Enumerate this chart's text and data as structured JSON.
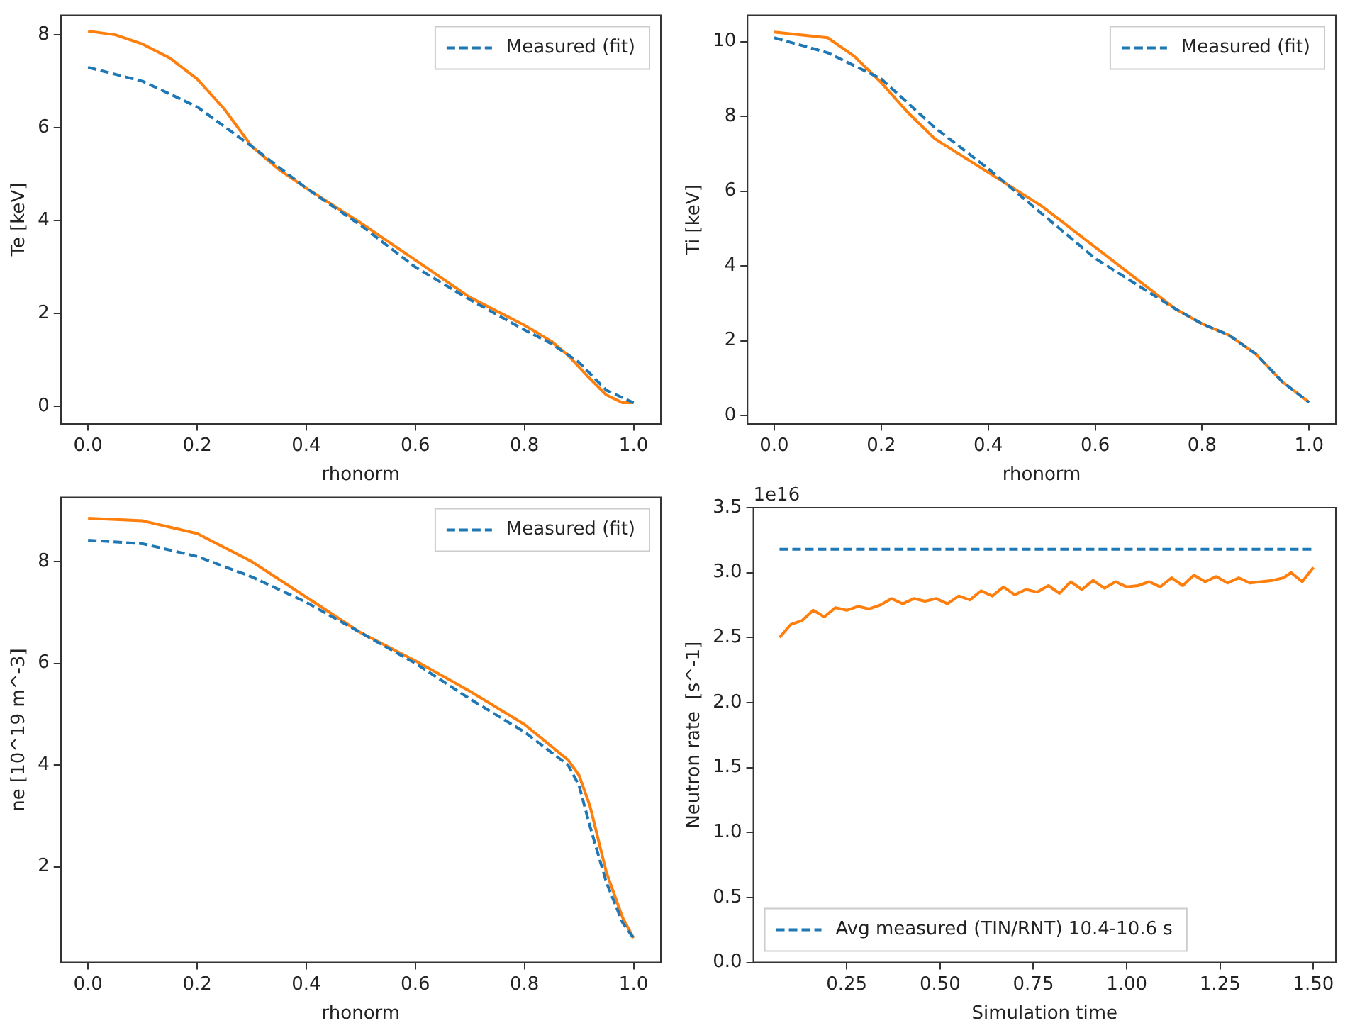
{
  "chart_data": [
    {
      "type": "line",
      "xlabel": "rhonorm",
      "ylabel": "Te [keV]",
      "legend": "top right",
      "grid": false,
      "marker": "none",
      "xlim": [
        -0.05,
        1.05
      ],
      "xticks": [
        {
          "value": 0,
          "label": "0.0"
        },
        {
          "value": 0.2,
          "label": "0.2"
        },
        {
          "value": 0.4,
          "label": "0.4"
        },
        {
          "value": 0.6,
          "label": "0.6"
        },
        {
          "value": 0.8,
          "label": "0.8"
        },
        {
          "value": 1,
          "label": "1.0"
        }
      ],
      "ylim": [
        -0.37,
        8.42
      ],
      "yticks": [
        0,
        2,
        4,
        6,
        8
      ],
      "series": [
        {
          "name": "Measured (fit)",
          "color": "#1f77b4",
          "line_style": "dashed",
          "x": [
            0,
            0.1,
            0.2,
            0.3,
            0.4,
            0.5,
            0.6,
            0.7,
            0.8,
            0.85,
            0.9,
            0.95,
            1.0
          ],
          "values": [
            7.3,
            7.0,
            6.45,
            5.6,
            4.7,
            3.9,
            3.0,
            2.3,
            1.65,
            1.35,
            0.95,
            0.35,
            0.08
          ]
        },
        {
          "color": "#ff7f0e",
          "line_style": "solid",
          "x": [
            0,
            0.05,
            0.1,
            0.15,
            0.2,
            0.25,
            0.3,
            0.35,
            0.4,
            0.5,
            0.6,
            0.7,
            0.8,
            0.85,
            0.88,
            0.92,
            0.95,
            0.98,
            1.0
          ],
          "values": [
            8.08,
            8.0,
            7.8,
            7.5,
            7.05,
            6.4,
            5.6,
            5.1,
            4.7,
            3.95,
            3.15,
            2.35,
            1.75,
            1.4,
            1.1,
            0.6,
            0.25,
            0.08,
            0.08
          ]
        }
      ]
    },
    {
      "type": "line",
      "xlabel": "rhonorm",
      "ylabel": "Ti [keV]",
      "legend": "top right",
      "grid": false,
      "marker": "none",
      "xlim": [
        -0.05,
        1.05
      ],
      "xticks": [
        {
          "value": 0,
          "label": "0.0"
        },
        {
          "value": 0.2,
          "label": "0.2"
        },
        {
          "value": 0.4,
          "label": "0.4"
        },
        {
          "value": 0.6,
          "label": "0.6"
        },
        {
          "value": 0.8,
          "label": "0.8"
        },
        {
          "value": 1,
          "label": "1.0"
        }
      ],
      "ylim": [
        -0.22,
        10.7
      ],
      "yticks": [
        0,
        2,
        4,
        6,
        8,
        10
      ],
      "series": [
        {
          "name": "Measured (fit)",
          "color": "#1f77b4",
          "line_style": "dashed",
          "x": [
            0,
            0.1,
            0.2,
            0.3,
            0.4,
            0.5,
            0.6,
            0.7,
            0.75,
            0.8,
            0.85,
            0.9,
            0.95,
            1.0
          ],
          "values": [
            10.1,
            9.7,
            9.0,
            7.7,
            6.6,
            5.4,
            4.2,
            3.3,
            2.85,
            2.45,
            2.15,
            1.65,
            0.9,
            0.35
          ]
        },
        {
          "color": "#ff7f0e",
          "line_style": "solid",
          "x": [
            0,
            0.1,
            0.15,
            0.2,
            0.25,
            0.3,
            0.4,
            0.5,
            0.6,
            0.7,
            0.75,
            0.8,
            0.85,
            0.9,
            0.95,
            1.0
          ],
          "values": [
            10.25,
            10.1,
            9.6,
            8.9,
            8.1,
            7.4,
            6.5,
            5.6,
            4.5,
            3.4,
            2.85,
            2.45,
            2.15,
            1.65,
            0.9,
            0.35
          ]
        }
      ]
    },
    {
      "type": "line",
      "xlabel": "rhonorm",
      "ylabel": "ne [10^19 m^-3]",
      "legend": "top right",
      "grid": false,
      "marker": "none",
      "xlim": [
        -0.05,
        1.05
      ],
      "xticks": [
        {
          "value": 0,
          "label": "0.0"
        },
        {
          "value": 0.2,
          "label": "0.2"
        },
        {
          "value": 0.4,
          "label": "0.4"
        },
        {
          "value": 0.6,
          "label": "0.6"
        },
        {
          "value": 0.8,
          "label": "0.8"
        },
        {
          "value": 1,
          "label": "1.0"
        }
      ],
      "ylim": [
        0.12,
        9.26
      ],
      "yticks": [
        2,
        4,
        6,
        8
      ],
      "series": [
        {
          "name": "Measured (fit)",
          "color": "#1f77b4",
          "line_style": "dashed",
          "x": [
            0,
            0.1,
            0.2,
            0.3,
            0.4,
            0.5,
            0.6,
            0.7,
            0.8,
            0.88,
            0.9,
            0.92,
            0.95,
            0.98,
            1.0
          ],
          "values": [
            8.42,
            8.35,
            8.1,
            7.7,
            7.2,
            6.6,
            6.0,
            5.3,
            4.65,
            4.0,
            3.6,
            2.8,
            1.7,
            0.9,
            0.6
          ]
        },
        {
          "color": "#ff7f0e",
          "line_style": "solid",
          "x": [
            0,
            0.1,
            0.2,
            0.3,
            0.4,
            0.5,
            0.6,
            0.7,
            0.8,
            0.88,
            0.9,
            0.92,
            0.95,
            0.98,
            1.0
          ],
          "values": [
            8.85,
            8.8,
            8.55,
            8.0,
            7.3,
            6.6,
            6.05,
            5.45,
            4.8,
            4.1,
            3.8,
            3.2,
            1.9,
            1.0,
            0.6
          ]
        }
      ]
    },
    {
      "type": "line",
      "xlabel": "Simulation time",
      "ylabel": "Neutron rate  [s^-1]",
      "legend": "bottom left",
      "grid": false,
      "marker": "none",
      "annotations": [
        "1e16"
      ],
      "xlim": [
        0.0,
        1.56
      ],
      "xticks": [
        {
          "value": 0.25,
          "label": "0.25"
        },
        {
          "value": 0.5,
          "label": "0.50"
        },
        {
          "value": 0.75,
          "label": "0.75"
        },
        {
          "value": 1,
          "label": "1.00"
        },
        {
          "value": 1.25,
          "label": "1.25"
        },
        {
          "value": 1.5,
          "label": "1.50"
        }
      ],
      "ylim": [
        0,
        3.5
      ],
      "yticks": [
        {
          "value": 0,
          "label": "0.0"
        },
        {
          "value": 0.5,
          "label": "0.5"
        },
        {
          "value": 1,
          "label": "1.0"
        },
        {
          "value": 1.5,
          "label": "1.5"
        },
        {
          "value": 2,
          "label": "2.0"
        },
        {
          "value": 2.5,
          "label": "2.5"
        },
        {
          "value": 3,
          "label": "3.0"
        },
        {
          "value": 3.5,
          "label": "3.5"
        }
      ],
      "series": [
        {
          "name": "Avg measured (TIN/RNT) 10.4-10.6 s",
          "color": "#1f77b4",
          "line_style": "dashed",
          "x": [
            0.07,
            1.5
          ],
          "values": [
            3.18,
            3.18
          ]
        },
        {
          "color": "#ff7f0e",
          "line_style": "solid",
          "x": [
            0.07,
            0.1,
            0.13,
            0.16,
            0.19,
            0.22,
            0.25,
            0.28,
            0.31,
            0.34,
            0.37,
            0.4,
            0.43,
            0.46,
            0.49,
            0.52,
            0.55,
            0.58,
            0.61,
            0.64,
            0.67,
            0.7,
            0.73,
            0.76,
            0.79,
            0.82,
            0.85,
            0.88,
            0.91,
            0.94,
            0.97,
            1.0,
            1.03,
            1.06,
            1.09,
            1.12,
            1.15,
            1.18,
            1.21,
            1.24,
            1.27,
            1.3,
            1.33,
            1.36,
            1.39,
            1.42,
            1.44,
            1.47,
            1.5
          ],
          "values": [
            2.5,
            2.6,
            2.63,
            2.71,
            2.66,
            2.73,
            2.71,
            2.74,
            2.72,
            2.75,
            2.8,
            2.76,
            2.8,
            2.78,
            2.8,
            2.76,
            2.82,
            2.79,
            2.86,
            2.82,
            2.89,
            2.83,
            2.87,
            2.85,
            2.9,
            2.84,
            2.93,
            2.87,
            2.94,
            2.88,
            2.93,
            2.89,
            2.9,
            2.93,
            2.89,
            2.96,
            2.9,
            2.98,
            2.93,
            2.97,
            2.92,
            2.96,
            2.92,
            2.93,
            2.94,
            2.96,
            3.0,
            2.93,
            3.04
          ]
        }
      ]
    }
  ]
}
